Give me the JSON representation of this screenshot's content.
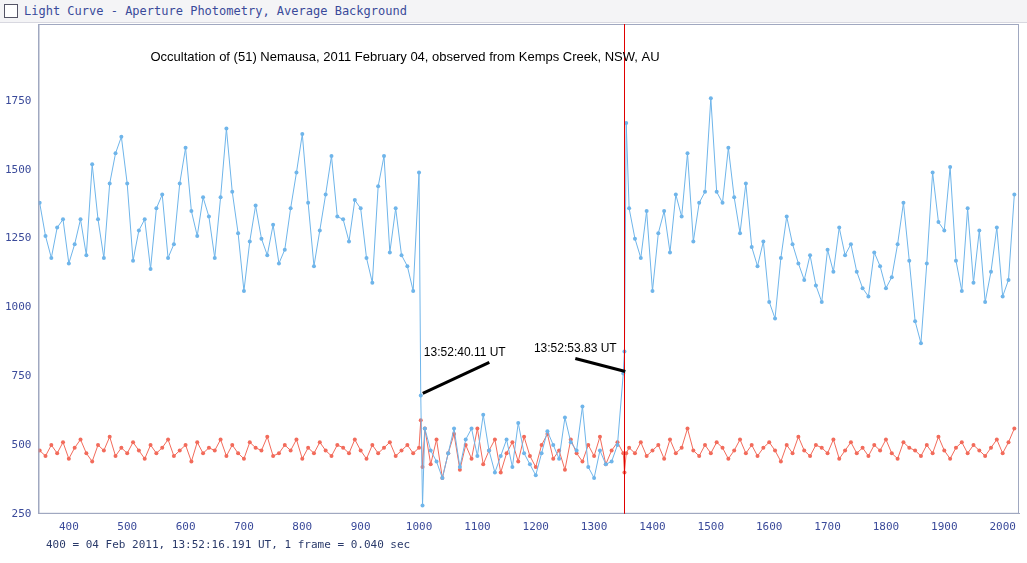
{
  "chart_data": {
    "type": "line",
    "window_title": "Light Curve - Aperture Photometry, Average Background",
    "title": "Occultation of (51) Nemausa, 2011 February 04, observed from Kemps Creek, NSW, AU",
    "footer": "400 = 04 Feb 2011, 13:52:16.191 UT, 1 frame = 0.040 sec",
    "xlim": [
      348,
      2028
    ],
    "xticks": [
      400,
      500,
      600,
      700,
      800,
      900,
      1000,
      1100,
      1200,
      1300,
      1400,
      1500,
      1600,
      1700,
      1800,
      1900,
      2000
    ],
    "ylim": [
      250,
      2030
    ],
    "yticks": [
      250,
      500,
      750,
      1000,
      1250,
      1500,
      1750
    ],
    "grid": false,
    "marker": "circle",
    "x": [
      350,
      360,
      370,
      380,
      390,
      400,
      410,
      420,
      430,
      440,
      450,
      460,
      470,
      480,
      490,
      500,
      510,
      520,
      530,
      540,
      550,
      560,
      570,
      580,
      590,
      600,
      610,
      620,
      630,
      640,
      650,
      660,
      670,
      680,
      690,
      700,
      710,
      720,
      730,
      740,
      750,
      760,
      770,
      780,
      790,
      800,
      810,
      820,
      830,
      840,
      850,
      860,
      870,
      880,
      890,
      900,
      910,
      920,
      930,
      940,
      950,
      960,
      970,
      980,
      990,
      1000,
      1003,
      1006,
      1010,
      1020,
      1030,
      1040,
      1050,
      1060,
      1070,
      1080,
      1090,
      1100,
      1110,
      1120,
      1130,
      1140,
      1150,
      1160,
      1170,
      1180,
      1190,
      1200,
      1210,
      1220,
      1230,
      1240,
      1250,
      1260,
      1270,
      1280,
      1290,
      1300,
      1310,
      1320,
      1330,
      1340,
      1350,
      1352,
      1355,
      1360,
      1370,
      1380,
      1390,
      1400,
      1410,
      1420,
      1430,
      1440,
      1450,
      1460,
      1470,
      1480,
      1490,
      1500,
      1510,
      1520,
      1530,
      1540,
      1550,
      1560,
      1570,
      1580,
      1590,
      1600,
      1610,
      1620,
      1630,
      1640,
      1650,
      1660,
      1670,
      1680,
      1690,
      1700,
      1710,
      1720,
      1730,
      1740,
      1750,
      1760,
      1770,
      1780,
      1790,
      1800,
      1810,
      1820,
      1830,
      1840,
      1850,
      1860,
      1870,
      1880,
      1890,
      1900,
      1910,
      1920,
      1930,
      1940,
      1950,
      1960,
      1970,
      1980,
      1990,
      2000,
      2010,
      2020
    ],
    "series": [
      {
        "color": "#6fb5ea",
        "values": [
          1380,
          1260,
          1180,
          1290,
          1320,
          1160,
          1230,
          1320,
          1190,
          1520,
          1320,
          1180,
          1450,
          1560,
          1620,
          1450,
          1170,
          1280,
          1320,
          1140,
          1360,
          1410,
          1180,
          1230,
          1450,
          1580,
          1350,
          1260,
          1400,
          1330,
          1180,
          1400,
          1650,
          1420,
          1270,
          1060,
          1240,
          1370,
          1250,
          1190,
          1300,
          1160,
          1210,
          1360,
          1490,
          1630,
          1380,
          1150,
          1280,
          1410,
          1550,
          1330,
          1320,
          1240,
          1390,
          1360,
          1180,
          1090,
          1440,
          1550,
          1200,
          1360,
          1190,
          1150,
          1060,
          1490,
          680,
          280,
          560,
          480,
          440,
          380,
          470,
          560,
          420,
          520,
          560,
          460,
          610,
          480,
          400,
          460,
          520,
          420,
          580,
          470,
          430,
          390,
          470,
          550,
          500,
          450,
          600,
          510,
          480,
          640,
          420,
          380,
          480,
          430,
          440,
          500,
          760,
          840,
          1670,
          1360,
          1250,
          1180,
          1350,
          1060,
          1270,
          1350,
          1200,
          1410,
          1330,
          1560,
          1240,
          1380,
          1420,
          1760,
          1420,
          1380,
          1580,
          1400,
          1270,
          1450,
          1220,
          1150,
          1240,
          1020,
          960,
          1180,
          1330,
          1230,
          1160,
          1100,
          1190,
          1080,
          1020,
          1210,
          1130,
          1290,
          1190,
          1230,
          1130,
          1070,
          1040,
          1200,
          1150,
          1070,
          1110,
          1230,
          1380,
          1170,
          950,
          870,
          1160,
          1490,
          1310,
          1280,
          1510,
          1170,
          1060,
          1360,
          1090,
          1280,
          1020,
          1130,
          1290,
          1040,
          1100,
          1410
        ]
      },
      {
        "color": "#f26b5b",
        "values": [
          480,
          460,
          500,
          470,
          510,
          450,
          490,
          520,
          470,
          440,
          500,
          480,
          530,
          460,
          490,
          470,
          510,
          480,
          450,
          500,
          470,
          490,
          520,
          460,
          480,
          500,
          440,
          510,
          470,
          490,
          480,
          520,
          460,
          500,
          470,
          450,
          510,
          490,
          480,
          530,
          460,
          470,
          500,
          480,
          520,
          450,
          490,
          470,
          510,
          480,
          460,
          500,
          490,
          470,
          520,
          480,
          450,
          500,
          470,
          490,
          510,
          460,
          480,
          500,
          470,
          490,
          590,
          420,
          560,
          430,
          520,
          380,
          470,
          540,
          410,
          500,
          450,
          560,
          430,
          480,
          520,
          400,
          470,
          510,
          440,
          530,
          460,
          420,
          500,
          540,
          450,
          480,
          410,
          520,
          470,
          440,
          500,
          460,
          530,
          430,
          480,
          510,
          470,
          400,
          470,
          490,
          470,
          510,
          460,
          480,
          500,
          450,
          520,
          470,
          490,
          560,
          480,
          460,
          500,
          470,
          510,
          490,
          450,
          480,
          520,
          470,
          500,
          460,
          490,
          510,
          480,
          440,
          500,
          470,
          530,
          480,
          460,
          500,
          490,
          470,
          520,
          450,
          480,
          510,
          470,
          490,
          460,
          500,
          480,
          520,
          470,
          450,
          510,
          490,
          480,
          460,
          500,
          470,
          530,
          480,
          450,
          490,
          510,
          470,
          500,
          480,
          460,
          490,
          520,
          470,
          510,
          560
        ]
      }
    ],
    "vertical_line": {
      "x": 1352,
      "color": "#e00000"
    },
    "annotations": [
      {
        "text": "13:52:40.11 UT",
        "point": [
          1003,
          680
        ]
      },
      {
        "text": "13:52:53.83 UT",
        "point": [
          1350,
          760
        ]
      }
    ]
  }
}
